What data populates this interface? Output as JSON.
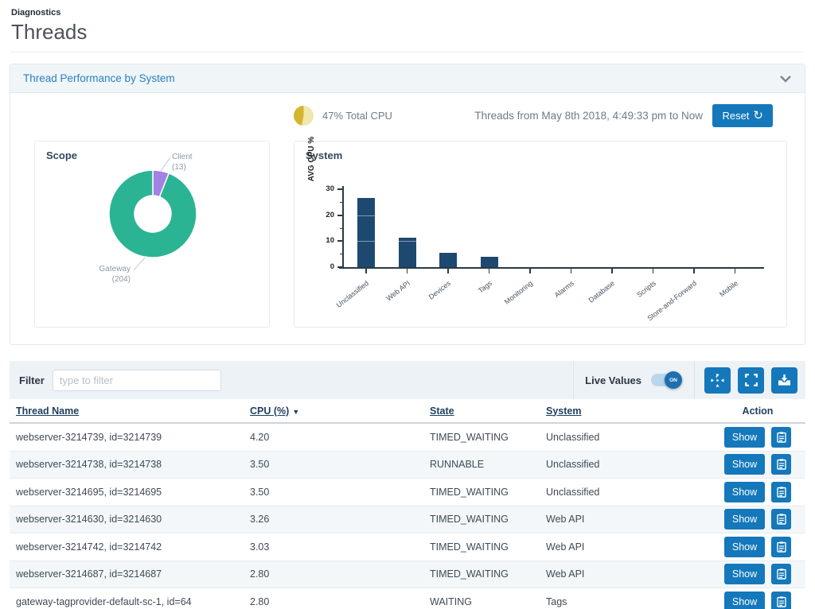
{
  "page": {
    "breadcrumb": "Diagnostics",
    "title": "Threads"
  },
  "panel": {
    "title": "Thread Performance by System"
  },
  "summary": {
    "total_cpu_text": "47% Total CPU",
    "range_text": "Threads from May 8th 2018, 4:49:33 pm to Now",
    "reset_label": "Reset"
  },
  "chart_data": [
    {
      "type": "pie",
      "title": "Scope",
      "donut": true,
      "labels": [
        "Client",
        "Gateway"
      ],
      "values": [
        13,
        204
      ],
      "colors": [
        "#a481e2",
        "#2bb494"
      ],
      "callouts": {
        "client": [
          "Client",
          "(13)"
        ],
        "gateway": [
          "Gateway",
          "(204)"
        ]
      }
    },
    {
      "type": "bar",
      "title": "System",
      "ylabel": "AVG CPU %",
      "ylim": [
        0,
        30
      ],
      "yticks": [
        0,
        10,
        20,
        30
      ],
      "yticks_minor": [
        5,
        15,
        25
      ],
      "categories": [
        "Unclassified",
        "Web API",
        "Devices",
        "Tags",
        "Monitoring",
        "Alarms",
        "Database",
        "Scripts",
        "Store-and-Forward",
        "Mobile"
      ],
      "values": [
        26.6,
        11.2,
        5.4,
        4.0,
        0,
        0,
        0,
        0,
        0,
        0
      ],
      "bar_color": "#1d4970",
      "grid": "white lines at 10 and 20 visible over bars",
      "legend": "none"
    }
  ],
  "filter": {
    "label": "Filter",
    "placeholder": "type to filter"
  },
  "live_values": {
    "label": "Live Values",
    "state": "ON"
  },
  "toolbar": {
    "icons": [
      "compress-icon",
      "expand-icon",
      "download-icon"
    ]
  },
  "table": {
    "columns": [
      {
        "label": "Thread Name",
        "sortable": true
      },
      {
        "label": "CPU (%)",
        "sortable": true,
        "sorted": "desc"
      },
      {
        "label": "State",
        "sortable": true
      },
      {
        "label": "System",
        "sortable": true
      },
      {
        "label": "Action",
        "sortable": false
      }
    ],
    "show_label": "Show",
    "rows": [
      {
        "name": "webserver-3214739, id=3214739",
        "cpu": "4.20",
        "state": "TIMED_WAITING",
        "system": "Unclassified"
      },
      {
        "name": "webserver-3214738, id=3214738",
        "cpu": "3.50",
        "state": "RUNNABLE",
        "system": "Unclassified"
      },
      {
        "name": "webserver-3214695, id=3214695",
        "cpu": "3.50",
        "state": "TIMED_WAITING",
        "system": "Unclassified"
      },
      {
        "name": "webserver-3214630, id=3214630",
        "cpu": "3.26",
        "state": "TIMED_WAITING",
        "system": "Web API"
      },
      {
        "name": "webserver-3214742, id=3214742",
        "cpu": "3.03",
        "state": "TIMED_WAITING",
        "system": "Web API"
      },
      {
        "name": "webserver-3214687, id=3214687",
        "cpu": "2.80",
        "state": "TIMED_WAITING",
        "system": "Web API"
      },
      {
        "name": "gateway-tagprovider-default-sc-1, id=64",
        "cpu": "2.80",
        "state": "WAITING",
        "system": "Tags"
      }
    ]
  }
}
